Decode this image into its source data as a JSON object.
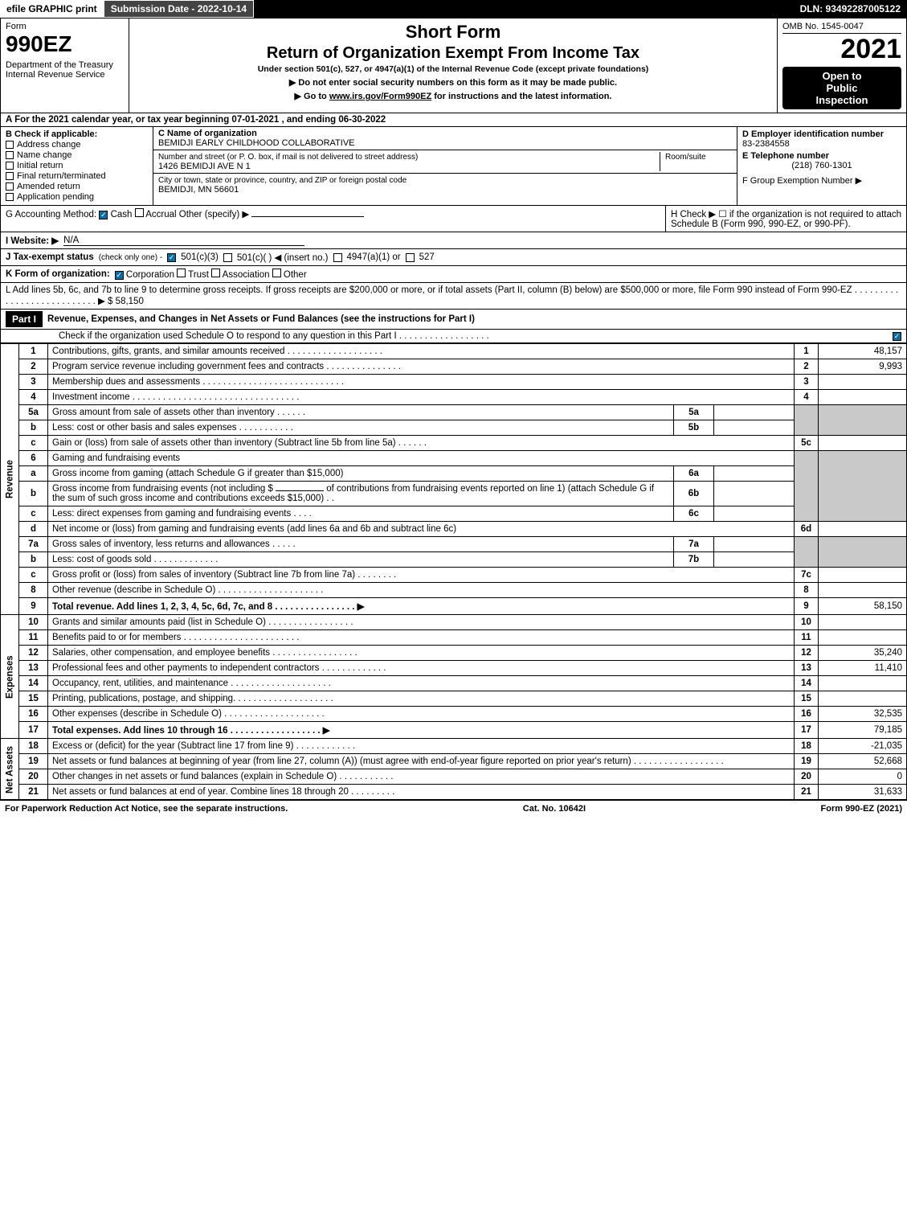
{
  "colors": {
    "black": "#000000",
    "white": "#ffffff",
    "grey": "#c9c9c9",
    "blue_ck": "#066da5"
  },
  "topbar": {
    "efile": "efile GRAPHIC print",
    "submission": "Submission Date - 2022-10-14",
    "dln": "DLN: 93492287005122"
  },
  "header": {
    "form": "Form",
    "form_number": "990EZ",
    "dept": "Department of the Treasury\nInternal Revenue Service",
    "short_form": "Short Form",
    "title": "Return of Organization Exempt From Income Tax",
    "under": "Under section 501(c), 527, or 4947(a)(1) of the Internal Revenue Code (except private foundations)",
    "note1": "▶ Do not enter social security numbers on this form as it may be made public.",
    "note2_pre": "▶ Go to ",
    "note2_link": "www.irs.gov/Form990EZ",
    "note2_post": " for instructions and the latest information.",
    "omb": "OMB No. 1545-0047",
    "year": "2021",
    "open1": "Open to",
    "open2": "Public",
    "open3": "Inspection"
  },
  "lineA": "A  For the 2021 calendar year, or tax year beginning 07-01-2021 , and ending 06-30-2022",
  "sectB": {
    "label": "B  Check if applicable:",
    "lines": [
      "Address change",
      "Name change",
      "Initial return",
      "Final return/terminated",
      "Amended return",
      "Application pending"
    ]
  },
  "sectC": {
    "c_label": "C Name of organization",
    "org_name": "BEMIDJI EARLY CHILDHOOD COLLABORATIVE",
    "addr_label": "Number and street (or P. O. box, if mail is not delivered to street address)",
    "room_label": "Room/suite",
    "addr": "1426 BEMIDJI AVE N 1",
    "city_label": "City or town, state or province, country, and ZIP or foreign postal code",
    "city": "BEMIDJI, MN  56601"
  },
  "sectDEF": {
    "d_label": "D Employer identification number",
    "ein": "83-2384558",
    "e_label": "E Telephone number",
    "phone": "(218) 760-1301",
    "f_label": "F Group Exemption Number  ▶"
  },
  "lineG": {
    "label": "G Accounting Method:",
    "cash": "Cash",
    "accrual": "Accrual",
    "other": "Other (specify) ▶",
    "cash_checked": true
  },
  "lineH": "H  Check ▶ ☐ if the organization is not required to attach Schedule B (Form 990, 990-EZ, or 990-PF).",
  "lineI": {
    "label": "I Website: ▶",
    "value": "N/A"
  },
  "lineJ": {
    "label": "J Tax-exempt status",
    "sm": "(check only one) -",
    "opt1": "501(c)(3)",
    "opt1_checked": true,
    "opt2": "501(c)(  ) ◀ (insert no.)",
    "opt3": "4947(a)(1) or",
    "opt4": "527"
  },
  "lineK": {
    "label": "K Form of organization:",
    "opts": [
      "Corporation",
      "Trust",
      "Association",
      "Other"
    ],
    "checked": 0
  },
  "lineL": {
    "text": "L Add lines 5b, 6c, and 7b to line 9 to determine gross receipts. If gross receipts are $200,000 or more, or if total assets (Part II, column (B) below) are $500,000 or more, file Form 990 instead of Form 990-EZ  .  .  .  .  .  .  .  .  .  .  .  .  .  .  .  .  .  .  .  .  .  .  .  .  .  .  .  ▶ $",
    "amount": "58,150"
  },
  "part1": {
    "badge": "Part I",
    "title": "Revenue, Expenses, and Changes in Net Assets or Fund Balances (see the instructions for Part I)",
    "check_line": "Check if the organization used Schedule O to respond to any question in this Part I  .  .  .  .  .  .  .  .  .  .  .  .  .  .  .  .  .  .",
    "check_checked": true
  },
  "sections": {
    "revenue": "Revenue",
    "expenses": "Expenses",
    "net": "Net Assets"
  },
  "rows": {
    "r1": {
      "ln": "1",
      "desc": "Contributions, gifts, grants, and similar amounts received  .  .  .  .  .  .  .  .  .  .  .  .  .  .  .  .  .  .  .",
      "num": "1",
      "amt": "48,157"
    },
    "r2": {
      "ln": "2",
      "desc": "Program service revenue including government fees and contracts  .  .  .  .  .  .  .  .  .  .  .  .  .  .  .",
      "num": "2",
      "amt": "9,993"
    },
    "r3": {
      "ln": "3",
      "desc": "Membership dues and assessments  .  .  .  .  .  .  .  .  .  .  .  .  .  .  .  .  .  .  .  .  .  .  .  .  .  .  .  .",
      "num": "3",
      "amt": ""
    },
    "r4": {
      "ln": "4",
      "desc": "Investment income  .  .  .  .  .  .  .  .  .  .  .  .  .  .  .  .  .  .  .  .  .  .  .  .  .  .  .  .  .  .  .  .  .",
      "num": "4",
      "amt": ""
    },
    "r5a": {
      "ln": "5a",
      "desc": "Gross amount from sale of assets other than inventory  .  .  .  .  .  .",
      "mbox": "5a"
    },
    "r5b": {
      "ln": "b",
      "desc": "Less: cost or other basis and sales expenses  .  .  .  .  .  .  .  .  .  .  .",
      "mbox": "5b"
    },
    "r5c": {
      "ln": "c",
      "desc": "Gain or (loss) from sale of assets other than inventory (Subtract line 5b from line 5a)  .  .  .  .  .  .",
      "num": "5c",
      "amt": ""
    },
    "r6": {
      "ln": "6",
      "desc": "Gaming and fundraising events"
    },
    "r6a": {
      "ln": "a",
      "desc": "Gross income from gaming (attach Schedule G if greater than $15,000)",
      "mbox": "6a"
    },
    "r6b": {
      "ln": "b",
      "desc": "Gross income from fundraising events (not including $",
      "desc2": "of contributions from fundraising events reported on line 1) (attach Schedule G if the sum of such gross income and contributions exceeds $15,000)   .   .",
      "mbox": "6b"
    },
    "r6c": {
      "ln": "c",
      "desc": "Less: direct expenses from gaming and fundraising events   .   .   .   .",
      "mbox": "6c"
    },
    "r6d": {
      "ln": "d",
      "desc": "Net income or (loss) from gaming and fundraising events (add lines 6a and 6b and subtract line 6c)",
      "num": "6d",
      "amt": ""
    },
    "r7a": {
      "ln": "7a",
      "desc": "Gross sales of inventory, less returns and allowances  .   .   .   .   .",
      "mbox": "7a"
    },
    "r7b": {
      "ln": "b",
      "desc": "Less: cost of goods sold      .   .   .   .   .   .   .   .   .   .   .   .   .",
      "mbox": "7b"
    },
    "r7c": {
      "ln": "c",
      "desc": "Gross profit or (loss) from sales of inventory (Subtract line 7b from line 7a)   .   .   .   .   .   .   .   .",
      "num": "7c",
      "amt": ""
    },
    "r8": {
      "ln": "8",
      "desc": "Other revenue (describe in Schedule O)  .   .   .   .   .   .   .   .   .   .   .   .   .   .   .   .   .   .   .   .   .",
      "num": "8",
      "amt": ""
    },
    "r9": {
      "ln": "9",
      "desc": "Total revenue. Add lines 1, 2, 3, 4, 5c, 6d, 7c, and 8   .   .   .   .   .   .   .   .   .   .   .   .   .   .   .   . ▶",
      "num": "9",
      "amt": "58,150",
      "bold": true
    },
    "r10": {
      "ln": "10",
      "desc": "Grants and similar amounts paid (list in Schedule O)  .   .   .   .   .   .   .   .   .   .   .   .   .   .   .   .   .",
      "num": "10",
      "amt": ""
    },
    "r11": {
      "ln": "11",
      "desc": "Benefits paid to or for members    .   .   .   .   .   .   .   .   .   .   .   .   .   .   .   .   .   .   .   .   .   .   .",
      "num": "11",
      "amt": ""
    },
    "r12": {
      "ln": "12",
      "desc": "Salaries, other compensation, and employee benefits  .   .   .   .   .   .   .   .   .   .   .   .   .   .   .   .   .",
      "num": "12",
      "amt": "35,240"
    },
    "r13": {
      "ln": "13",
      "desc": "Professional fees and other payments to independent contractors  .   .   .   .   .   .   .   .   .   .   .   .   .",
      "num": "13",
      "amt": "11,410"
    },
    "r14": {
      "ln": "14",
      "desc": "Occupancy, rent, utilities, and maintenance  .   .   .   .   .   .   .   .   .   .   .   .   .   .   .   .   .   .   .   .",
      "num": "14",
      "amt": ""
    },
    "r15": {
      "ln": "15",
      "desc": "Printing, publications, postage, and shipping.   .   .   .   .   .   .   .   .   .   .   .   .   .   .   .   .   .   .   .",
      "num": "15",
      "amt": ""
    },
    "r16": {
      "ln": "16",
      "desc": "Other expenses (describe in Schedule O)    .   .   .   .   .   .   .   .   .   .   .   .   .   .   .   .   .   .   .   .",
      "num": "16",
      "amt": "32,535"
    },
    "r17": {
      "ln": "17",
      "desc": "Total expenses. Add lines 10 through 16    .   .   .   .   .   .   .   .   .   .   .   .   .   .   .   .   .   . ▶",
      "num": "17",
      "amt": "79,185",
      "bold": true
    },
    "r18": {
      "ln": "18",
      "desc": "Excess or (deficit) for the year (Subtract line 17 from line 9)     .   .   .   .   .   .   .   .   .   .   .   .",
      "num": "18",
      "amt": "-21,035"
    },
    "r19": {
      "ln": "19",
      "desc": "Net assets or fund balances at beginning of year (from line 27, column (A)) (must agree with end-of-year figure reported on prior year's return)  .   .   .   .   .   .   .   .   .   .   .   .   .   .   .   .   .   .",
      "num": "19",
      "amt": "52,668"
    },
    "r20": {
      "ln": "20",
      "desc": "Other changes in net assets or fund balances (explain in Schedule O)  .   .   .   .   .   .   .   .   .   .   .",
      "num": "20",
      "amt": "0"
    },
    "r21": {
      "ln": "21",
      "desc": "Net assets or fund balances at end of year. Combine lines 18 through 20  .   .   .   .   .   .   .   .   .",
      "num": "21",
      "amt": "31,633"
    }
  },
  "footer": {
    "left": "For Paperwork Reduction Act Notice, see the separate instructions.",
    "mid": "Cat. No. 10642I",
    "right_pre": "Form ",
    "right_bold": "990-EZ",
    "right_post": " (2021)"
  }
}
